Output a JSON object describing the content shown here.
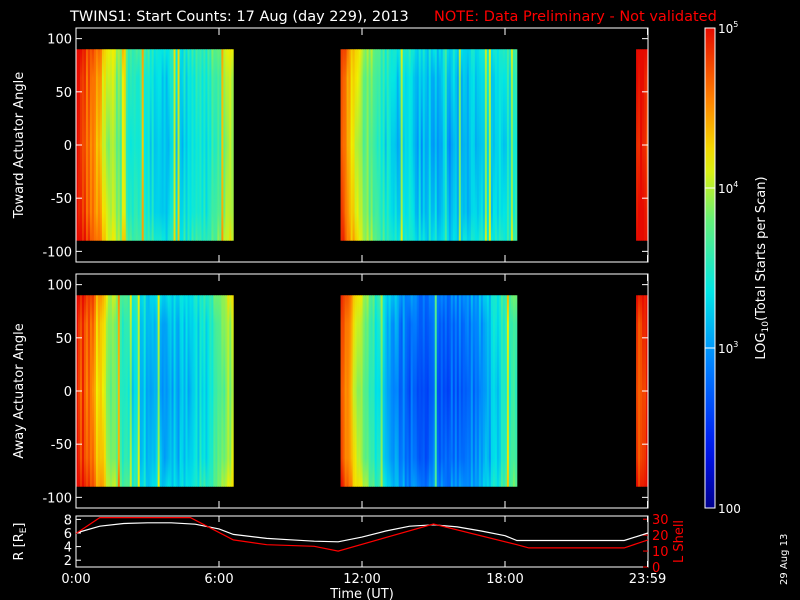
{
  "header": {
    "title": "TWINS1: Start Counts: 17 Aug (day 229), 2013",
    "note": "NOTE: Data Preliminary - Not validated"
  },
  "footer": {
    "date_stamp": "29 Aug 13"
  },
  "colors": {
    "background": "#000000",
    "axes": "#ffffff",
    "note": "#ff0000",
    "r_line": "#ffffff",
    "lshell_line": "#ff0000"
  },
  "chart_data": [
    {
      "type": "heatmap",
      "id": "toward",
      "ylabel": "Toward Actuator Angle",
      "ylim": [
        -110,
        110
      ],
      "yticks": [
        100,
        50,
        0,
        -50,
        -100
      ],
      "xlim": [
        0,
        24
      ],
      "data_angle_range": [
        -90,
        90
      ],
      "segments": [
        {
          "t_start": 0.0,
          "t_end": 6.6,
          "level_profile": [
            4.9,
            4.6,
            4.2,
            3.8,
            3.5,
            3.4,
            3.3,
            3.2,
            3.25,
            3.3,
            3.4,
            3.6,
            4.0
          ]
        },
        {
          "t_start": 11.1,
          "t_end": 18.5,
          "level_profile": [
            4.6,
            4.0,
            3.6,
            3.3,
            3.2,
            3.15,
            3.1,
            3.1,
            3.15,
            3.2,
            3.3,
            3.35
          ]
        },
        {
          "t_start": 23.5,
          "t_end": 24.0,
          "level_profile": [
            4.85,
            4.85
          ]
        }
      ]
    },
    {
      "type": "heatmap",
      "id": "away",
      "ylabel": "Away Actuator Angle",
      "ylim": [
        -110,
        110
      ],
      "yticks": [
        100,
        50,
        0,
        -50,
        -100
      ],
      "xlim": [
        0,
        24
      ],
      "data_angle_range": [
        -90,
        90
      ],
      "segments": [
        {
          "t_start": 0.0,
          "t_end": 6.6,
          "level_profile": [
            4.9,
            4.6,
            4.1,
            3.7,
            3.4,
            3.2,
            3.1,
            3.05,
            3.1,
            3.2,
            3.3,
            3.6,
            4.0
          ]
        },
        {
          "t_start": 11.1,
          "t_end": 18.5,
          "level_profile": [
            4.7,
            4.1,
            3.5,
            3.0,
            2.8,
            2.7,
            2.65,
            2.7,
            2.8,
            3.0,
            3.3,
            3.6
          ]
        },
        {
          "t_start": 23.5,
          "t_end": 24.0,
          "level_profile": [
            4.8,
            4.8
          ]
        }
      ]
    },
    {
      "type": "line",
      "id": "orbit",
      "ylabel": "R [RE]",
      "ylabel_main": "R [R",
      "ylabel_sub": "E",
      "ylabel_end": "]",
      "ylim": [
        1,
        8.5
      ],
      "yticks": [
        2,
        4,
        6,
        8
      ],
      "ylabel_right": "L Shell",
      "ylim_right": [
        0,
        32
      ],
      "yticks_right": [
        0,
        10,
        20,
        30
      ],
      "xlim": [
        0,
        24
      ],
      "xlabel": "Time (UT)",
      "xticks": [
        {
          "t": 0.0,
          "label": "0:00"
        },
        {
          "t": 6.0,
          "label": "6:00"
        },
        {
          "t": 12.0,
          "label": "12:00"
        },
        {
          "t": 18.0,
          "label": "18:00"
        },
        {
          "t": 23.98,
          "label": "23:59"
        }
      ],
      "series": [
        {
          "axis": "left",
          "x": [
            0,
            1,
            2,
            3,
            4,
            5,
            6,
            6.6,
            8,
            9,
            10,
            11,
            12,
            13,
            14,
            15,
            16,
            17,
            18,
            18.5,
            20,
            22,
            23,
            24
          ],
          "y": [
            6.0,
            7.0,
            7.4,
            7.5,
            7.5,
            7.3,
            6.6,
            5.8,
            5.2,
            5.0,
            4.8,
            4.7,
            5.4,
            6.3,
            7.0,
            7.2,
            6.9,
            6.3,
            5.6,
            4.9,
            4.9,
            4.9,
            4.9,
            6.0
          ]
        },
        {
          "axis": "right",
          "x": [
            0,
            1,
            4.8,
            6.6,
            8,
            10,
            11,
            15,
            18.5,
            19,
            22,
            23,
            24
          ],
          "y": [
            21,
            31,
            31,
            17,
            14,
            13,
            10,
            27,
            14,
            12,
            12,
            12,
            17
          ]
        }
      ]
    }
  ],
  "colorbar": {
    "label_main": "LOG",
    "label_sub": "10",
    "label_rest": "(Total Starts per Scan)",
    "range": [
      2,
      5
    ],
    "ticks": [
      {
        "value": 5,
        "base": "10",
        "exp": "5"
      },
      {
        "value": 4,
        "base": "10",
        "exp": "4"
      },
      {
        "value": 3,
        "base": "10",
        "exp": "3"
      },
      {
        "value": 2,
        "base": "100",
        "exp": ""
      }
    ]
  }
}
